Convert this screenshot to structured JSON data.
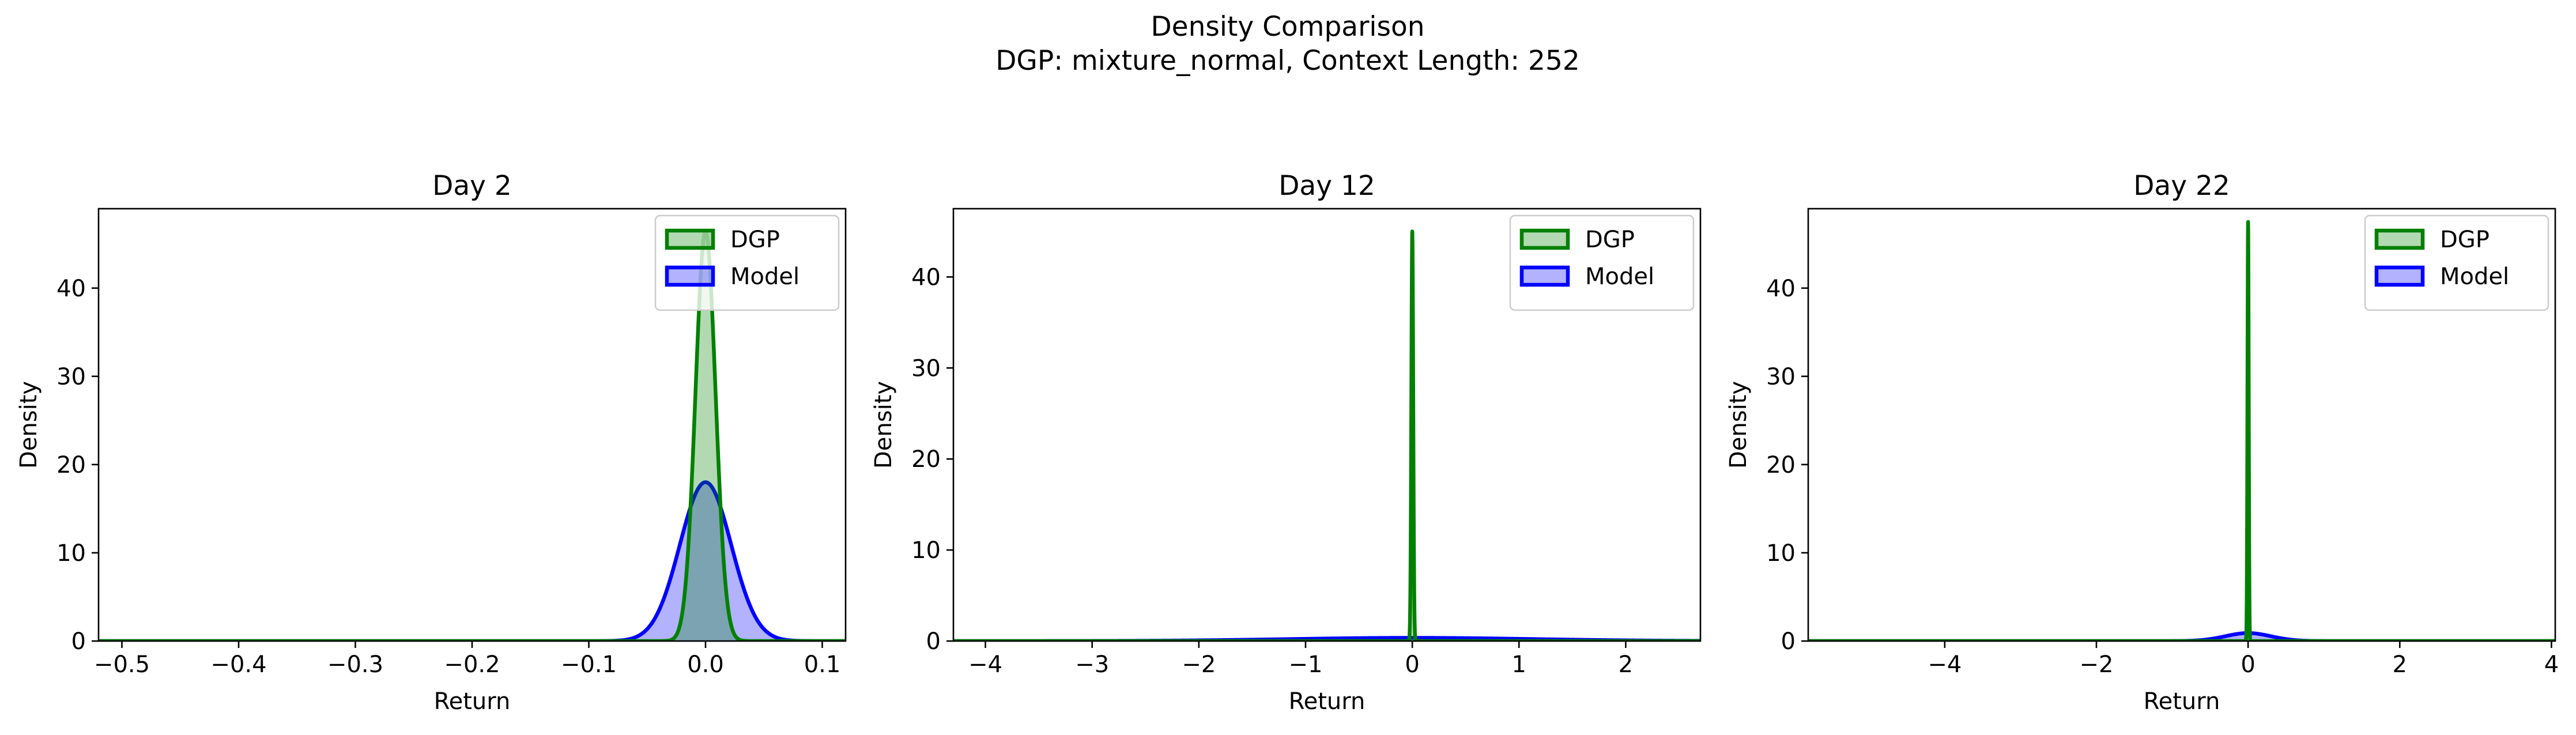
{
  "figure": {
    "title": "Density Comparison",
    "subtitle": "DGP: mixture_normal, Context Length: 252"
  },
  "colors": {
    "dgp": "#008000",
    "model": "#0000ff",
    "overlap": "#2e5e8e"
  },
  "chart_data": [
    {
      "type": "area",
      "title": "Day 2",
      "xlabel": "Return",
      "ylabel": "Density",
      "xlim": [
        -0.52,
        0.12
      ],
      "ylim": [
        0,
        49
      ],
      "xticks": [
        -0.5,
        -0.4,
        -0.3,
        -0.2,
        -0.1,
        0.0,
        0.1
      ],
      "xtick_labels": [
        "−0.5",
        "−0.4",
        "−0.3",
        "−0.2",
        "−0.1",
        "0.0",
        "0.1"
      ],
      "yticks": [
        0,
        10,
        20,
        30,
        40
      ],
      "grid": false,
      "legend_position": "top-right",
      "series": [
        {
          "name": "DGP",
          "peak_x": 0.0,
          "peak_density": 46.5,
          "sd": 0.0086,
          "color": "#008000"
        },
        {
          "name": "Model",
          "peak_x": 0.0,
          "peak_density": 18.0,
          "sd": 0.022,
          "color": "#0000ff"
        }
      ]
    },
    {
      "type": "area",
      "title": "Day 12",
      "xlabel": "Return",
      "ylabel": "Density",
      "xlim": [
        -4.3,
        2.7
      ],
      "ylim": [
        0,
        47.5
      ],
      "xticks": [
        -4,
        -3,
        -2,
        -1,
        0,
        1,
        2
      ],
      "xtick_labels": [
        "−4",
        "−3",
        "−2",
        "−1",
        "0",
        "1",
        "2"
      ],
      "yticks": [
        0,
        10,
        20,
        30,
        40
      ],
      "grid": false,
      "legend_position": "top-right",
      "series": [
        {
          "name": "DGP",
          "peak_x": 0.0,
          "peak_density": 45.0,
          "sd": 0.0089,
          "color": "#008000"
        },
        {
          "name": "Model",
          "peak_x": 0.0,
          "peak_density": 0.35,
          "sd": 1.15,
          "color": "#0000ff"
        }
      ]
    },
    {
      "type": "area",
      "title": "Day 22",
      "xlabel": "Return",
      "ylabel": "Density",
      "xlim": [
        -5.8,
        4.05
      ],
      "ylim": [
        0,
        49
      ],
      "xticks": [
        -4,
        -2,
        0,
        2,
        4
      ],
      "xtick_labels": [
        "−4",
        "−2",
        "0",
        "2",
        "4"
      ],
      "yticks": [
        0,
        10,
        20,
        30,
        40
      ],
      "grid": false,
      "legend_position": "top-right",
      "series": [
        {
          "name": "DGP",
          "peak_x": 0.0,
          "peak_density": 47.5,
          "sd": 0.0084,
          "color": "#008000"
        },
        {
          "name": "Model",
          "peak_x": 0.0,
          "peak_density": 0.9,
          "sd": 0.3,
          "color": "#0000ff"
        }
      ]
    }
  ]
}
